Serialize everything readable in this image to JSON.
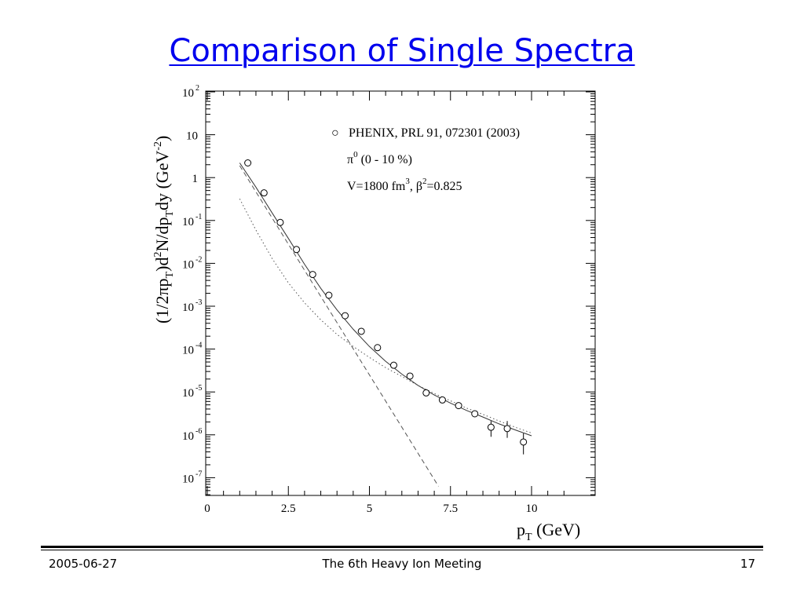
{
  "slide": {
    "title": "Comparison of Single Spectra",
    "footer_left": "2005-06-27",
    "footer_center": "The 6th Heavy Ion Meeting",
    "footer_right": "17"
  },
  "chart_data": {
    "type": "scatter",
    "x_scale": "linear",
    "y_scale": "log",
    "xlim": [
      0,
      11.5
    ],
    "ylim": [
      1e-07,
      100
    ],
    "x_ticks": [
      {
        "value": 0,
        "label": "0"
      },
      {
        "value": 2.5,
        "label": "2.5"
      },
      {
        "value": 5,
        "label": "5"
      },
      {
        "value": 7.5,
        "label": "7.5"
      },
      {
        "value": 10,
        "label": "10"
      }
    ],
    "y_ticks": [
      {
        "exp": 2,
        "base": "10",
        "sup": "2"
      },
      {
        "exp": 1,
        "base": "10",
        "sup": ""
      },
      {
        "exp": 0,
        "base": "1",
        "sup": ""
      },
      {
        "exp": -1,
        "base": "10",
        "sup": "-1"
      },
      {
        "exp": -2,
        "base": "10",
        "sup": "-2"
      },
      {
        "exp": -3,
        "base": "10",
        "sup": "-3"
      },
      {
        "exp": -4,
        "base": "10",
        "sup": "-4"
      },
      {
        "exp": -5,
        "base": "10",
        "sup": "-5"
      },
      {
        "exp": -6,
        "base": "10",
        "sup": "-6"
      },
      {
        "exp": -7,
        "base": "10",
        "sup": "-7"
      }
    ],
    "xlabel": {
      "p": "p",
      "sub": "T",
      "rest": " (GeV)"
    },
    "ylabel": {
      "a": "(1/2",
      "pi": "π",
      "b": "p",
      "b_sub": "T",
      "c": ")d",
      "c_sup": "2",
      "d": "N/dp",
      "d_sub": "T",
      "e": "dy (GeV",
      "e_sup": "-2",
      "f": ")"
    },
    "legend": {
      "marker": "○",
      "entry": "PHENIX, PRL 91, 072301 (2003)",
      "line2_a": "π",
      "line2_sup": "0",
      "line2_b": " (0 - 10 %)",
      "line3_a": "V=1800 fm",
      "line3_sup": "3",
      "line3_b": ", β",
      "line3_sup2": "2",
      "line3_c": "=0.825"
    },
    "series": [
      {
        "kind": "points",
        "x": [
          1.25,
          1.75,
          2.25,
          2.75,
          3.25,
          3.75,
          4.25,
          4.75,
          5.25,
          5.75,
          6.25,
          6.75,
          7.25,
          7.75,
          8.25,
          8.75,
          9.25,
          9.75
        ],
        "y": [
          2.2,
          0.44,
          0.09,
          0.021,
          0.0055,
          0.0018,
          0.0006,
          0.00026,
          0.000108,
          4.2e-05,
          2.35e-05,
          9.5e-06,
          6.5e-06,
          4.8e-06,
          3.1e-06,
          1.5e-06,
          1.4e-06,
          6.8e-07
        ],
        "err_lo": [
          0,
          0,
          0,
          0,
          0,
          0,
          0,
          0,
          0,
          0,
          0,
          0,
          0,
          0,
          0,
          6e-07,
          5.5e-07,
          3.3e-07
        ],
        "err_hi": [
          0,
          0,
          0,
          0,
          0,
          0,
          0,
          0,
          0,
          0,
          0,
          0,
          0,
          0,
          0,
          6e-07,
          7e-07,
          4e-07
        ]
      },
      {
        "kind": "line",
        "style": "solid",
        "x": [
          1.0,
          1.5,
          2.0,
          2.5,
          3.0,
          3.5,
          4.0,
          4.5,
          5.0,
          5.5,
          6.0,
          6.5,
          7.0,
          7.5,
          8.0,
          8.5,
          9.0,
          9.5,
          10.0
        ],
        "y": [
          2.2,
          0.6,
          0.15,
          0.038,
          0.0095,
          0.0026,
          0.00082,
          0.00029,
          0.000115,
          5.2e-05,
          2.6e-05,
          1.42e-05,
          8.5e-06,
          5.5e-06,
          3.7e-06,
          2.6e-06,
          1.8e-06,
          1.3e-06,
          9.5e-07
        ]
      },
      {
        "kind": "line",
        "style": "dashed",
        "x": [
          1.0,
          7.13
        ],
        "y": [
          1.9,
          6.3e-08
        ]
      },
      {
        "kind": "line",
        "style": "dotted",
        "x": [
          1.0,
          1.5,
          2.0,
          2.5,
          3.0,
          3.5,
          4.0,
          4.5,
          5.0,
          5.5,
          6.0,
          6.5,
          7.0,
          7.5,
          8.0,
          8.5,
          9.0,
          9.5,
          10.0
        ],
        "y": [
          0.32,
          0.06,
          0.013,
          0.0035,
          0.0012,
          0.00048,
          0.00022,
          0.000115,
          6.4e-05,
          3.7e-05,
          2.3e-05,
          1.42e-05,
          9.2e-06,
          6.2e-06,
          4.2e-06,
          3e-06,
          2.1e-06,
          1.5e-06,
          1.1e-06
        ]
      }
    ]
  }
}
